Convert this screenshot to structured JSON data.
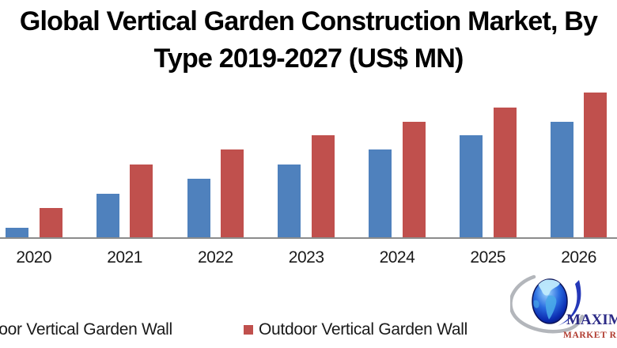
{
  "page": {
    "background": "#FFFFFF"
  },
  "title": {
    "line1": "Global Vertical Garden Construction Market, By",
    "line2": "Type 2019-2027 (US$ MN)"
  },
  "chart_data": {
    "type": "bar",
    "title": "Global Vertical Garden Construction Market, By Type 2019-2027 (US$ MN)",
    "categories": [
      "2020",
      "2021",
      "2022",
      "2023",
      "2024",
      "2025",
      "2026"
    ],
    "series": [
      {
        "name": "Indoor Vertical Garden Wall",
        "color": "#4F81BD",
        "values": [
          12,
          55,
          74,
          92,
          111,
          129,
          146
        ]
      },
      {
        "name": "Outdoor Vertical Garden Wall",
        "color": "#C0504D",
        "values": [
          37,
          92,
          111,
          129,
          146,
          164,
          183
        ]
      }
    ],
    "ylim": [
      0,
      200
    ],
    "value_scale": "relative units (y-axis cropped out of frame, no tick labels visible)",
    "grid": false,
    "y_axis_visible": false,
    "legend_position": "bottom",
    "xlabel": "",
    "ylabel": "",
    "axis_line_color": "#8C8C8C",
    "tick_label_color": "#1A1A1A"
  },
  "legend": {
    "items": [
      {
        "label": "Indoor Vertical Garden Wall",
        "color": "#4F81BD"
      },
      {
        "label": "Outdoor Vertical Garden Wall",
        "color": "#C0504D"
      }
    ]
  },
  "logo": {
    "brand": "MAXIMIZE",
    "tagline": "MARKET RESEARCH",
    "brand_color": "#2B2A86",
    "tagline_color": "#B03A2E"
  }
}
